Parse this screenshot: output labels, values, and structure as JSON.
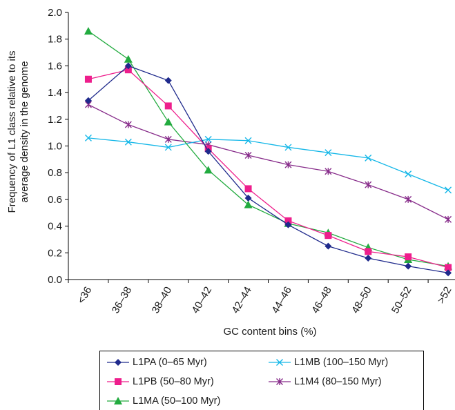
{
  "chart_data": {
    "type": "line",
    "categories": [
      "<36",
      "36–38",
      "38–40",
      "40–42",
      "42–44",
      "44–46",
      "46–48",
      "48–50",
      "50–52",
      ">52"
    ],
    "xlabel": "GC content bins (%)",
    "ylabel": "Frequency of L1 class relative to its average density in the genome",
    "ylim": [
      0,
      2.0
    ],
    "yticks": [
      "0.0",
      "0.2",
      "0.4",
      "0.6",
      "0.8",
      "1.0",
      "1.2",
      "1.4",
      "1.6",
      "1.8",
      "2.0"
    ],
    "grid": false,
    "legend_position": "bottom",
    "series": [
      {
        "name": "L1PA (0–65 Myr)",
        "color": "#1f2a8c",
        "marker": "diamond",
        "values": [
          1.34,
          1.6,
          1.49,
          0.96,
          0.61,
          0.41,
          0.25,
          0.16,
          0.1,
          0.05
        ]
      },
      {
        "name": "L1PB (50–80 Myr)",
        "color": "#ee1e8c",
        "marker": "square",
        "values": [
          1.5,
          1.57,
          1.3,
          0.98,
          0.68,
          0.44,
          0.33,
          0.21,
          0.17,
          0.09
        ]
      },
      {
        "name": "L1MA (50–100 Myr)",
        "color": "#22ab3f",
        "marker": "triangle",
        "values": [
          1.86,
          1.65,
          1.18,
          0.82,
          0.56,
          0.42,
          0.35,
          0.24,
          0.15,
          0.1
        ]
      },
      {
        "name": "L1MB (100–150 Myr)",
        "color": "#14b7e8",
        "marker": "x",
        "values": [
          1.06,
          1.03,
          0.99,
          1.05,
          1.04,
          0.99,
          0.95,
          0.91,
          0.79,
          0.67
        ]
      },
      {
        "name": "L1M4 (80–150 Myr)",
        "color": "#872c8a",
        "marker": "star",
        "values": [
          1.31,
          1.16,
          1.05,
          1.01,
          0.93,
          0.86,
          0.81,
          0.71,
          0.6,
          0.45
        ]
      }
    ]
  }
}
